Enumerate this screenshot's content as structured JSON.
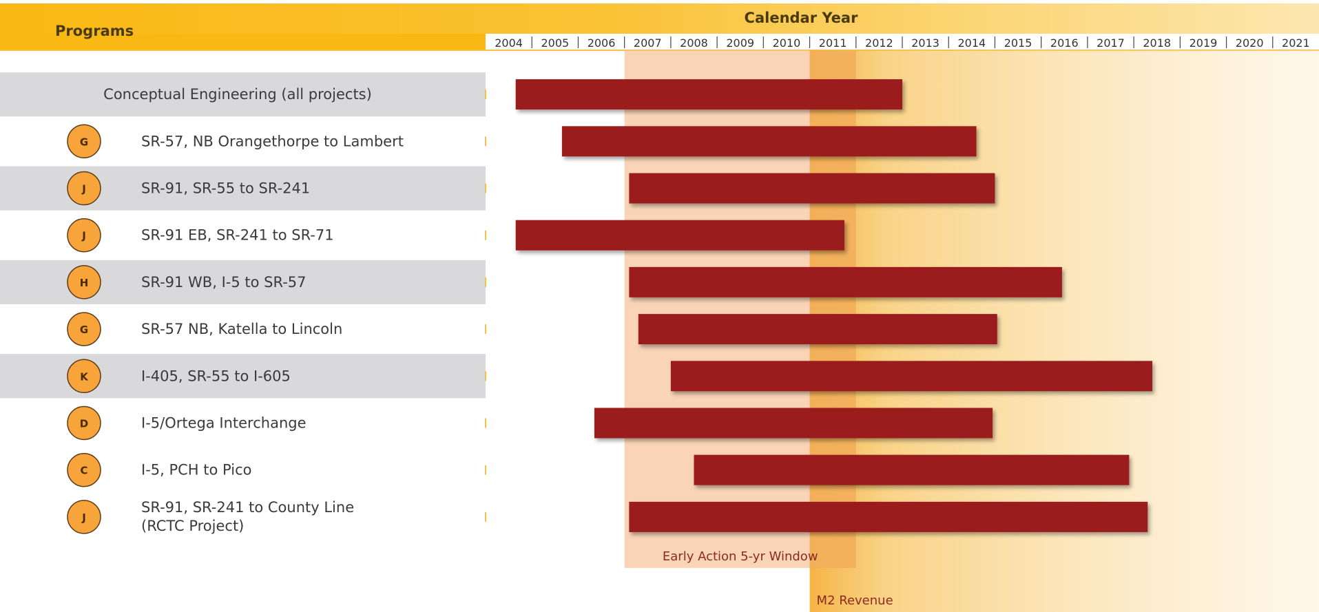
{
  "chart_data": {
    "type": "bar",
    "subtype": "gantt",
    "header": {
      "programs_label": "Programs",
      "calendar_label": "Calendar Year"
    },
    "years": [
      "2004",
      "2005",
      "2006",
      "2007",
      "2008",
      "2009",
      "2010",
      "2011",
      "2012",
      "2013",
      "2014",
      "2015",
      "2016",
      "2017",
      "2018",
      "2019",
      "2020",
      "2021"
    ],
    "xlim": [
      2004,
      2022
    ],
    "rows": [
      {
        "badge": "",
        "label": "Conceptual Engineering (all projects)",
        "label2": "",
        "start": 2004.65,
        "end": 2013.0,
        "shaded": true,
        "centered": true
      },
      {
        "badge": "G",
        "label": "SR-57, NB Orangethorpe to Lambert",
        "label2": "",
        "start": 2005.65,
        "end": 2014.6,
        "shaded": false
      },
      {
        "badge": "J",
        "label": "SR-91, SR-55 to SR-241",
        "label2": "",
        "start": 2007.1,
        "end": 2015.0,
        "shaded": true
      },
      {
        "badge": "J",
        "label": "SR-91 EB, SR-241 to SR-71",
        "label2": "",
        "start": 2004.65,
        "end": 2011.75,
        "shaded": false
      },
      {
        "badge": "H",
        "label": "SR-91 WB, I-5 to SR-57",
        "label2": "",
        "start": 2007.1,
        "end": 2016.45,
        "shaded": true
      },
      {
        "badge": "G",
        "label": "SR-57 NB, Katella to Lincoln",
        "label2": "",
        "start": 2007.3,
        "end": 2015.05,
        "shaded": false
      },
      {
        "badge": "K",
        "label": "I-405, SR-55 to I-605",
        "label2": "",
        "start": 2008.0,
        "end": 2018.4,
        "shaded": true
      },
      {
        "badge": "D",
        "label": "I-5/Ortega Interchange",
        "label2": "",
        "start": 2006.35,
        "end": 2014.95,
        "shaded": false
      },
      {
        "badge": "C",
        "label": "I-5, PCH to Pico",
        "label2": "",
        "start": 2008.5,
        "end": 2017.9,
        "shaded": false
      },
      {
        "badge": "J",
        "label": "SR-91, SR-241 to County Line",
        "label2": "(RCTC Project)",
        "start": 2007.1,
        "end": 2018.3,
        "shaded": false
      }
    ],
    "windows": [
      {
        "label": "Early Action 5-yr Window",
        "start": 2007.0,
        "end": 2012.0,
        "color": "#f6c49a"
      },
      {
        "label": "M2 Revenue",
        "start": 2011.0,
        "end": 2022.0,
        "color": "#f5b43c"
      }
    ],
    "colors": {
      "bar": "#9b1c1f",
      "header": "#f9b813",
      "row_shade": "#d9d9db",
      "separator": "#f6c044",
      "badge_fill": "#f7a43b",
      "badge_stroke": "#5a3a1a"
    }
  }
}
